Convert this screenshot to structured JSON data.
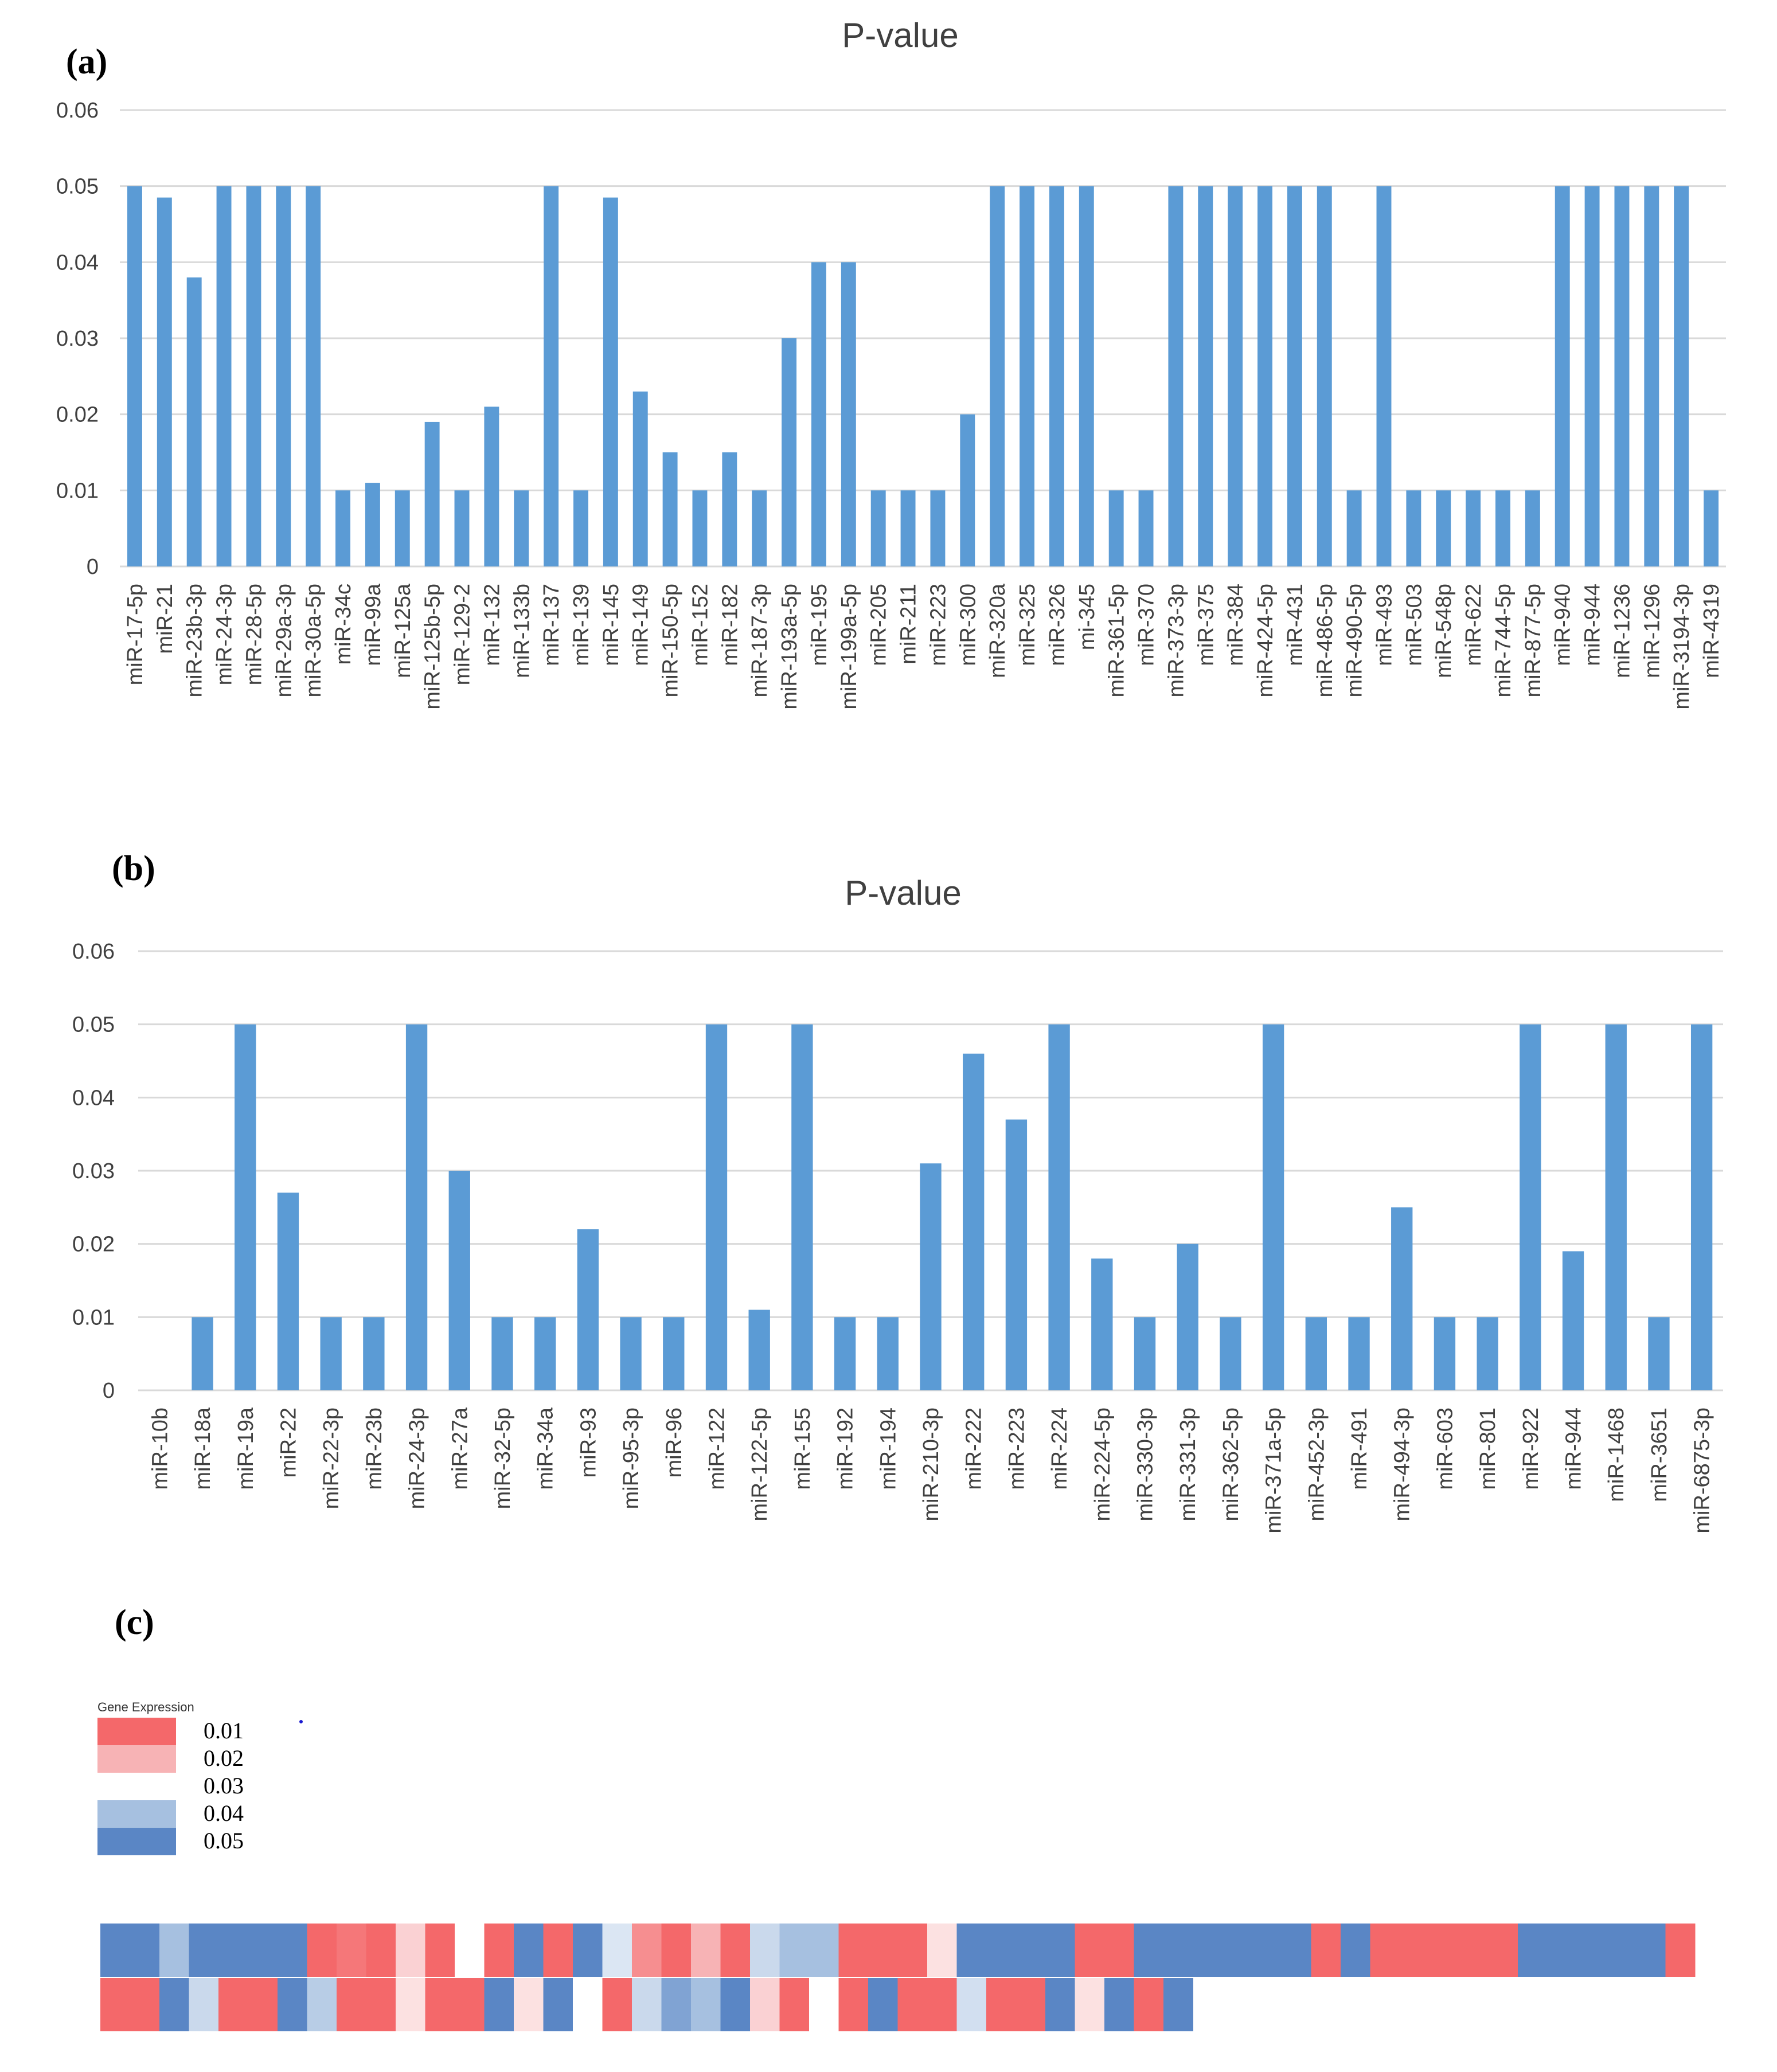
{
  "chart_data": [
    {
      "type": "bar",
      "panel_label": "(a)",
      "title": "P-value",
      "ylim": [
        0,
        0.06
      ],
      "yticks": [
        "0",
        "0.01",
        "0.02",
        "0.03",
        "0.04",
        "0.05",
        "0.06"
      ],
      "categories": [
        "miR-17-5p",
        "miR-21",
        "miR-23b-3p",
        "miR-24-3p",
        "miR-28-5p",
        "miR-29a-3p",
        "miR-30a-5p",
        "miR-34c",
        "miR-99a",
        "miR-125a",
        "miR-125b-5p",
        "miR-129-2",
        "miR-132",
        "miR-133b",
        "miR-137",
        "miR-139",
        "miR-145",
        "miR-149",
        "miR-150-5p",
        "miR-152",
        "miR-182",
        "miR-187-3p",
        "miR-193a-5p",
        "miR-195",
        "miR-199a-5p",
        "miR-205",
        "miR-211",
        "miR-223",
        "miR-300",
        "miR-320a",
        "miR-325",
        "miR-326",
        "mi-345",
        "miR-361-5p",
        "miR-370",
        "miR-373-3p",
        "miR-375",
        "miR-384",
        "miR-424-5p",
        "miR-431",
        "miR-486-5p",
        "miR-490-5p",
        "miR-493",
        "miR-503",
        "miR-548p",
        "miR-622",
        "miR-744-5p",
        "miR-877-5p",
        "miR-940",
        "miR-944",
        "miR-1236",
        "miR-1296",
        "miR-3194-3p",
        "miR-4319"
      ],
      "values": [
        0.05,
        0.0485,
        0.038,
        0.05,
        0.05,
        0.05,
        0.05,
        0.01,
        0.011,
        0.01,
        0.019,
        0.01,
        0.021,
        0.01,
        0.05,
        0.01,
        0.0485,
        0.023,
        0.015,
        0.01,
        0.015,
        0.01,
        0.03,
        0.04,
        0.04,
        0.01,
        0.01,
        0.01,
        0.02,
        0.05,
        0.05,
        0.05,
        0.05,
        0.01,
        0.01,
        0.05,
        0.05,
        0.05,
        0.05,
        0.05,
        0.05,
        0.01,
        0.05,
        0.01,
        0.01,
        0.01,
        0.01,
        0.01,
        0.05,
        0.05,
        0.05,
        0.05,
        0.05,
        0.01
      ],
      "color": "#5b9bd5",
      "grid": true
    },
    {
      "type": "bar",
      "panel_label": "(b)",
      "title": "P-value",
      "ylim": [
        0,
        0.06
      ],
      "yticks": [
        "0",
        "0.01",
        "0.02",
        "0.03",
        "0.04",
        "0.05",
        "0.06"
      ],
      "categories": [
        "miR-10b",
        "miR-18a",
        "miR-19a",
        "miR-22",
        "miR-22-3p",
        "miR-23b",
        "miR-24-3p",
        "miR-27a",
        "miR-32-5p",
        "miR-34a",
        "miR-93",
        "miR-95-3p",
        "miR-96",
        "miR-122",
        "miR-122-5p",
        "miR-155",
        "miR-192",
        "miR-194",
        "miR-210-3p",
        "miR-222",
        "miR-223",
        "miR-224",
        "miR-224-5p",
        "miR-330-3p",
        "miR-331-3p",
        "miR-362-5p",
        "miR-371a-5p",
        "miR-452-3p",
        "miR-491",
        "miR-494-3p",
        "miR-603",
        "miR-801",
        "miR-922",
        "miR-944",
        "miR-1468",
        "miR-3651",
        "miR-6875-3p"
      ],
      "values": [
        0,
        0.01,
        0.05,
        0.027,
        0.01,
        0.01,
        0.05,
        0.03,
        0.01,
        0.01,
        0.022,
        0.01,
        0.01,
        0.05,
        0.011,
        0.05,
        0.01,
        0.01,
        0.031,
        0.046,
        0.037,
        0.05,
        0.018,
        0.01,
        0.02,
        0.01,
        0.05,
        0.01,
        0.01,
        0.025,
        0.01,
        0.01,
        0.05,
        0.019,
        0.05,
        0.01,
        0.05
      ],
      "color": "#5b9bd5",
      "grid": true
    },
    {
      "type": "heatmap",
      "panel_label": "(c)",
      "legend_title": "Gene Expression",
      "legend": [
        {
          "label": "0.01",
          "color": "#f4686a"
        },
        {
          "label": "0.02",
          "color": "#f7b3b5"
        },
        {
          "label": "0.03",
          "color": "#ffffff"
        },
        {
          "label": "0.04",
          "color": "#a6c0e0"
        },
        {
          "label": "0.05",
          "color": "#5a86c5"
        }
      ],
      "rows": [
        [
          0.05,
          0.05,
          0.04,
          0.05,
          0.05,
          0.05,
          0.05,
          0.01,
          0.012,
          0.01,
          0.024,
          0.01,
          0.03,
          0.01,
          0.05,
          0.01,
          0.05,
          0.034,
          0.015,
          0.01,
          0.02,
          0.01,
          0.036,
          0.04,
          0.04,
          0.01,
          0.01,
          0.01,
          0.026,
          0.05,
          0.05,
          0.05,
          0.05,
          0.01,
          0.01,
          0.05,
          0.05,
          0.05,
          0.05,
          0.05,
          0.05,
          0.01,
          0.05,
          0.01,
          0.01,
          0.01,
          0.01,
          0.01,
          0.05,
          0.05,
          0.05,
          0.05,
          0.05,
          0.01
        ],
        [
          0.01,
          0.01,
          0.05,
          0.036,
          0.01,
          0.01,
          0.05,
          0.038,
          0.01,
          0.01,
          0.026,
          0.01,
          0.01,
          0.05,
          0.026,
          0.05,
          0.03,
          0.01,
          0.036,
          0.045,
          0.04,
          0.05,
          0.024,
          0.01,
          0.03,
          0.01,
          0.05,
          0.01,
          0.01,
          0.035,
          0.01,
          0.01,
          0.05,
          0.026,
          0.05,
          0.01,
          0.05
        ]
      ]
    }
  ]
}
